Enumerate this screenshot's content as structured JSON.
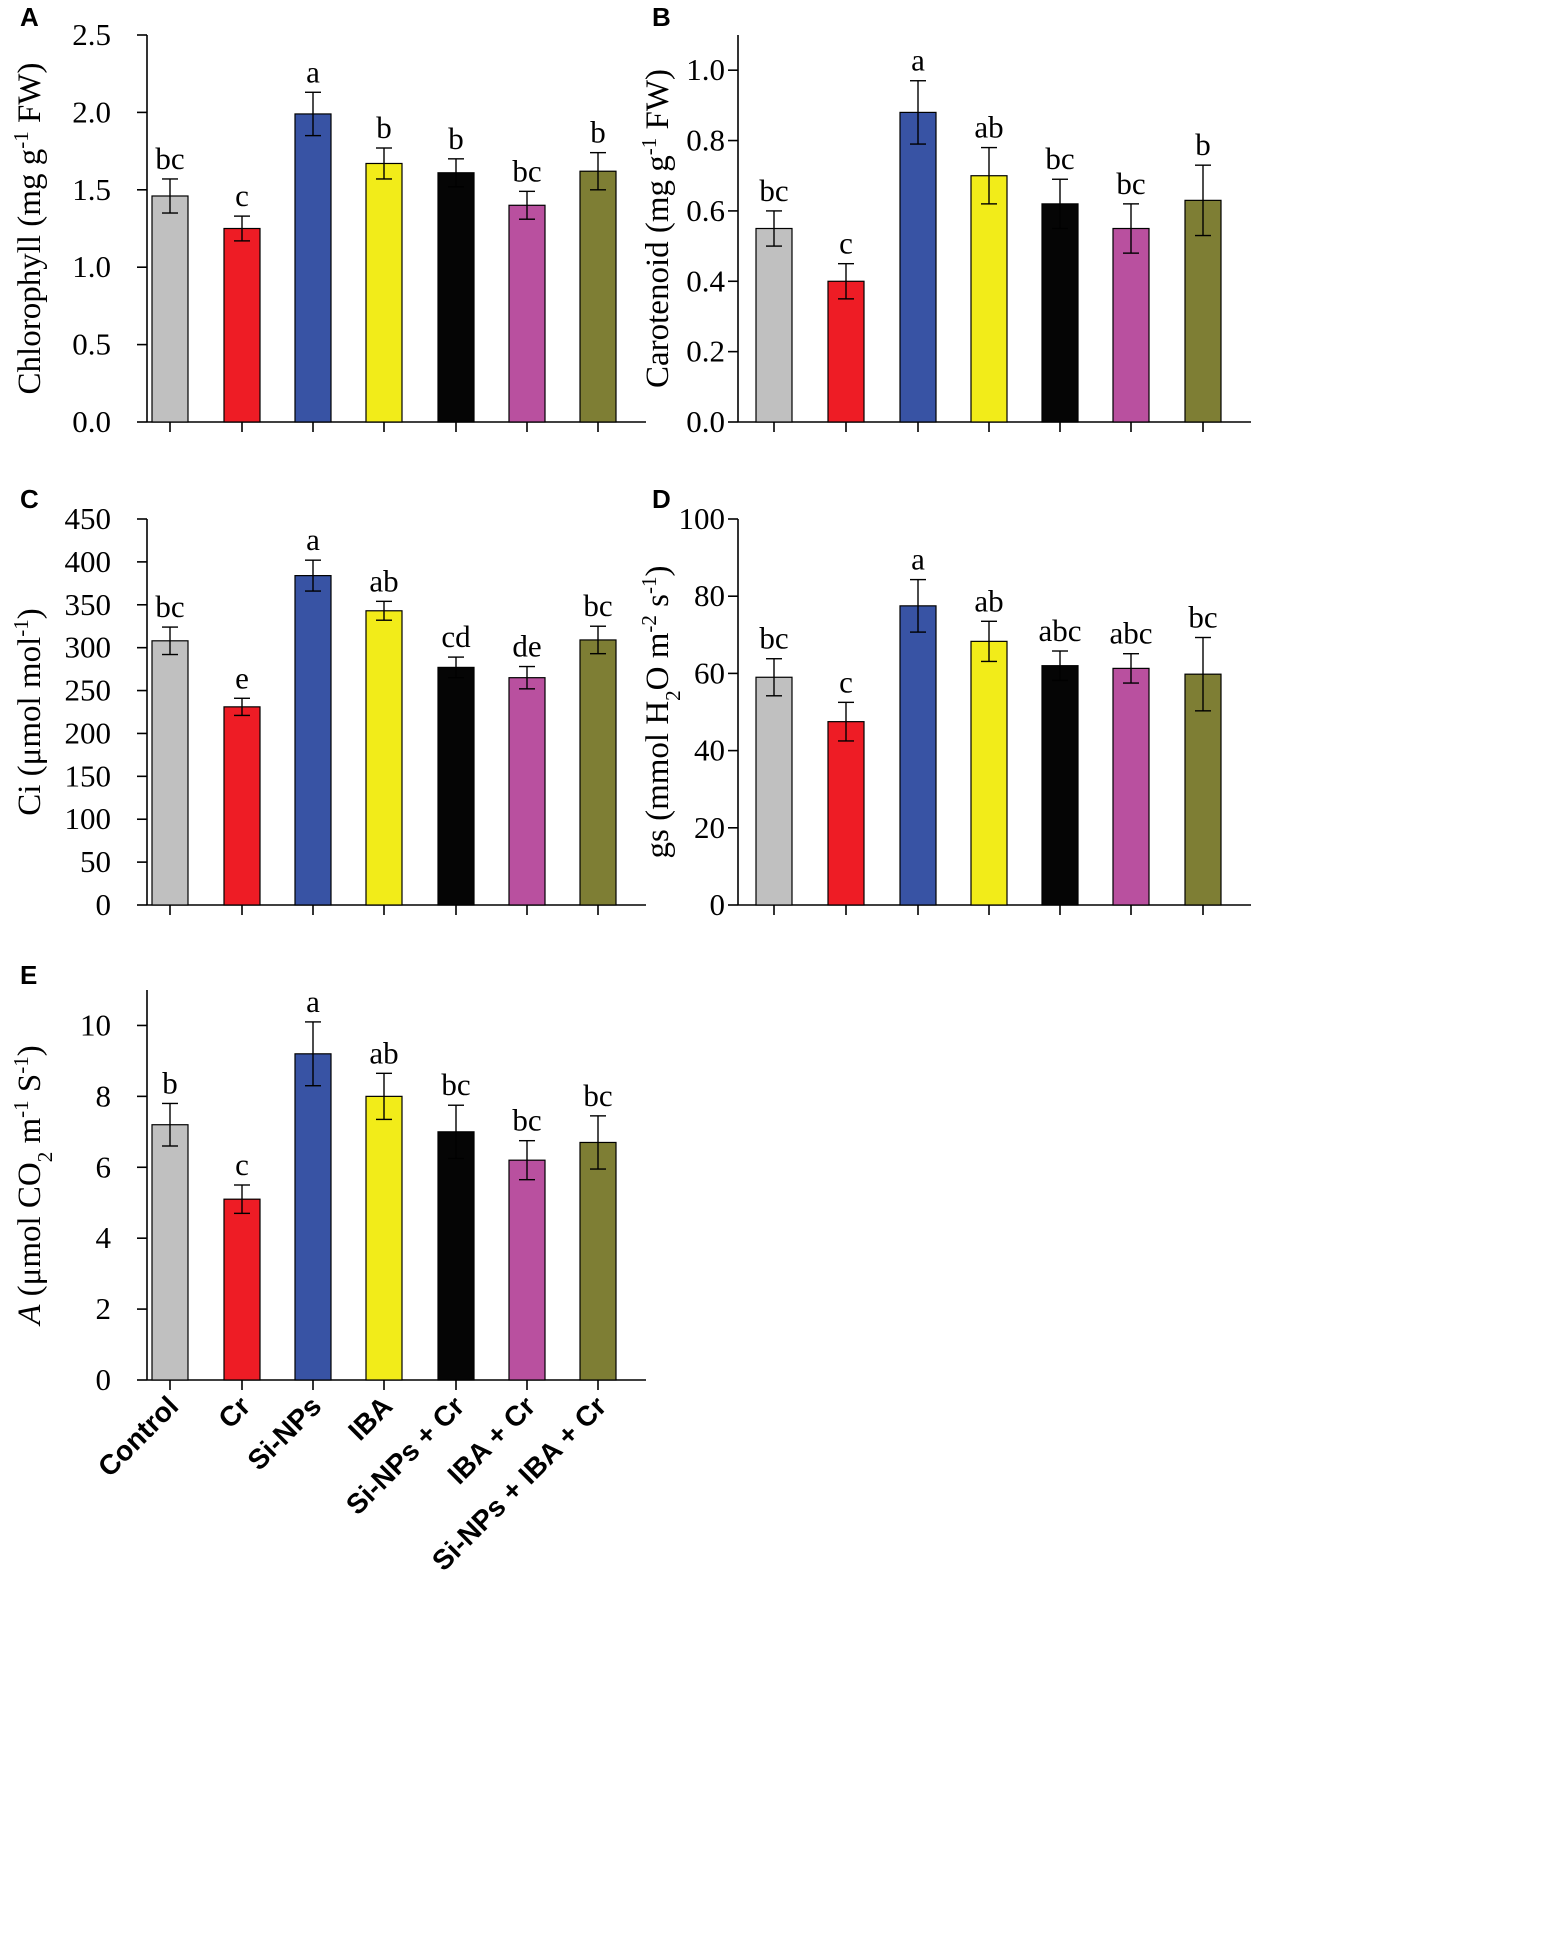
{
  "chart_data": [
    {
      "panel": "A",
      "type": "bar",
      "ylabel_parts": [
        "Chlorophyll (mg g",
        "-1",
        " FW)"
      ],
      "ylim": [
        0,
        2.5
      ],
      "yticks": [
        "0.0",
        "0.5",
        "1.0",
        "1.5",
        "2.0",
        "2.5"
      ],
      "values": [
        1.46,
        1.25,
        1.99,
        1.67,
        1.61,
        1.4,
        1.62
      ],
      "errors": [
        0.11,
        0.08,
        0.14,
        0.1,
        0.09,
        0.09,
        0.12
      ],
      "letters": [
        "bc",
        "c",
        "a",
        "b",
        "b",
        "bc",
        "b"
      ]
    },
    {
      "panel": "B",
      "type": "bar",
      "ylabel_parts": [
        "Carotenoid (mg g",
        "-1",
        " FW)"
      ],
      "ylim": [
        0,
        1.1
      ],
      "yticks": [
        "0.0",
        "0.2",
        "0.4",
        "0.6",
        "0.8",
        "1.0"
      ],
      "values": [
        0.55,
        0.4,
        0.88,
        0.7,
        0.62,
        0.55,
        0.63
      ],
      "errors": [
        0.05,
        0.05,
        0.09,
        0.08,
        0.07,
        0.07,
        0.1
      ],
      "letters": [
        "bc",
        "c",
        "a",
        "ab",
        "bc",
        "bc",
        "b"
      ]
    },
    {
      "panel": "C",
      "type": "bar",
      "ylabel_parts": [
        "Ci (μmol mol",
        "-1",
        ")"
      ],
      "ylim": [
        0,
        450
      ],
      "yticks": [
        "0",
        "50",
        "100",
        "150",
        "200",
        "250",
        "300",
        "350",
        "400",
        "450"
      ],
      "values": [
        308,
        231,
        384,
        343,
        277,
        265,
        309
      ],
      "errors": [
        16,
        10,
        18,
        11,
        12,
        13,
        16
      ],
      "letters": [
        "bc",
        "e",
        "a",
        "ab",
        "cd",
        "de",
        "bc"
      ]
    },
    {
      "panel": "D",
      "type": "bar",
      "ylabel_parts": [
        "gs (mmol H",
        "2",
        "O m",
        "-2",
        " s",
        "-1",
        ")"
      ],
      "ylim": [
        0,
        100
      ],
      "yticks": [
        "0",
        "20",
        "40",
        "60",
        "80",
        "100"
      ],
      "values": [
        59,
        47.5,
        77.5,
        68.3,
        62,
        61.3,
        59.8
      ],
      "errors": [
        4.8,
        5.0,
        6.8,
        5.2,
        3.8,
        3.8,
        9.5
      ],
      "letters": [
        "bc",
        "c",
        "a",
        "ab",
        "abc",
        "abc",
        "bc"
      ]
    },
    {
      "panel": "E",
      "type": "bar",
      "ylabel_parts": [
        "A",
        " (μmol CO",
        "2",
        " m",
        "-1",
        " S",
        "-1",
        ")"
      ],
      "ylim": [
        0,
        11
      ],
      "yticks": [
        "0",
        "2",
        "4",
        "6",
        "8",
        "10"
      ],
      "values": [
        7.2,
        5.1,
        9.2,
        8.0,
        7.0,
        6.2,
        6.7
      ],
      "errors": [
        0.6,
        0.4,
        0.9,
        0.65,
        0.75,
        0.55,
        0.75
      ],
      "letters": [
        "b",
        "c",
        "a",
        "ab",
        "bc",
        "bc",
        "bc"
      ]
    }
  ],
  "categories": [
    "Control",
    "Cr",
    "Si-NPs",
    "IBA",
    "Si-NPs + Cr",
    "IBA + Cr",
    "Si-NPs + IBA + Cr"
  ],
  "colors": [
    "#c0c0c0",
    "#ee1c25",
    "#3853a4",
    "#f2ec19",
    "#050505",
    "#b9509f",
    "#7e7e34"
  ]
}
